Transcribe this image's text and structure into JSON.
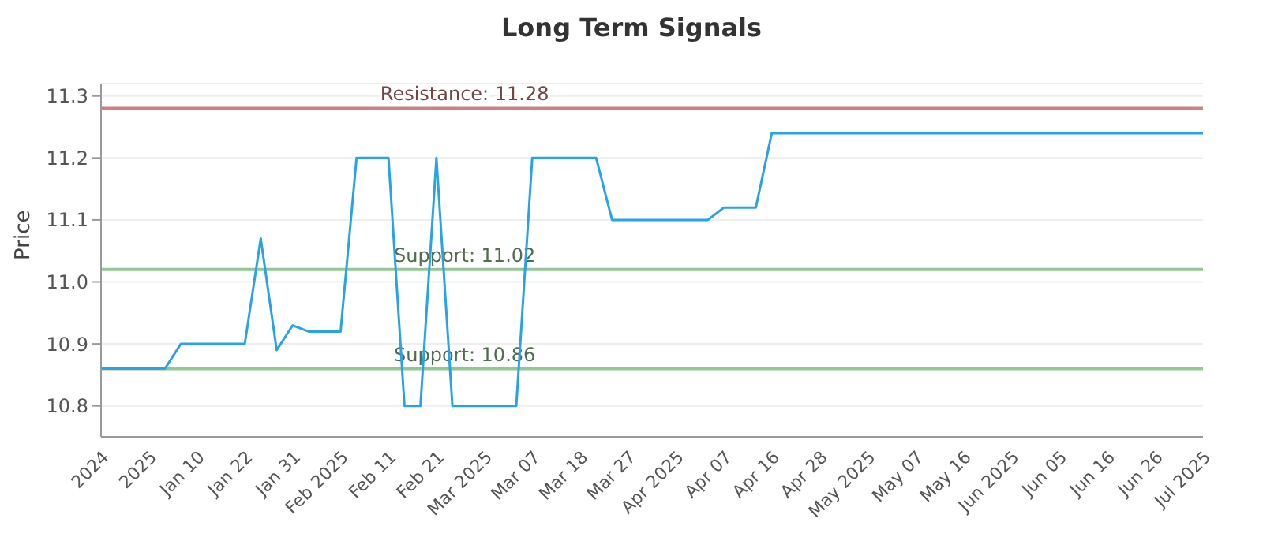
{
  "chart_data": {
    "type": "line",
    "title": "Long Term Signals",
    "ylabel": "Price",
    "categories": [
      "2024",
      null,
      null,
      "2025",
      null,
      null,
      "Jan 10",
      null,
      null,
      "Jan 22",
      null,
      null,
      "Jan 31",
      null,
      null,
      "Feb 2025",
      null,
      null,
      "Feb 11",
      null,
      null,
      "Feb 21",
      null,
      null,
      "Mar 2025",
      null,
      null,
      "Mar 07",
      null,
      null,
      "Mar 18",
      null,
      null,
      "Mar 27",
      null,
      null,
      "Apr 2025",
      null,
      null,
      "Apr 07",
      null,
      null,
      "Apr 16",
      null,
      null,
      "Apr 28",
      null,
      null,
      "May 2025",
      null,
      null,
      "May 07",
      null,
      null,
      "May 16",
      null,
      null,
      "Jun 2025",
      null,
      null,
      "Jun 05",
      null,
      null,
      "Jun 16",
      null,
      null,
      "Jun 26",
      null,
      null,
      "Jul 2025"
    ],
    "series": [
      {
        "color": "#29a3e8",
        "values": [
          10.86,
          10.86,
          10.86,
          10.86,
          10.86,
          10.9,
          10.9,
          10.9,
          10.9,
          10.9,
          11.07,
          10.89,
          10.93,
          10.92,
          10.92,
          10.92,
          11.2,
          11.2,
          11.2,
          10.8,
          10.8,
          11.2,
          10.8,
          10.8,
          10.8,
          10.8,
          10.8,
          11.2,
          11.2,
          11.2,
          11.2,
          11.2,
          11.1,
          11.1,
          11.1,
          11.1,
          11.1,
          11.1,
          11.1,
          11.12,
          11.12,
          11.12,
          11.24,
          11.24,
          11.24,
          11.24,
          11.24,
          11.24,
          11.24,
          11.24,
          11.24,
          11.24,
          11.24,
          11.24,
          11.24,
          11.24,
          11.24,
          11.24,
          11.24,
          11.24,
          11.24,
          11.24,
          11.24,
          11.24,
          11.24,
          11.24,
          11.24,
          11.24,
          11.24,
          11.24
        ]
      }
    ],
    "ylim": [
      10.75,
      11.32
    ],
    "yticks": [
      10.8,
      10.9,
      {
        "value": 11,
        "label": "11.0"
      },
      11.1,
      11.2,
      11.3
    ],
    "grid": "y",
    "marker": "none",
    "line_style": "solid",
    "legend": false,
    "ref_lines": [
      {
        "axis": "y",
        "value": 11.28,
        "label": "Resistance: 11.28",
        "color": "#d08080"
      },
      {
        "axis": "y",
        "value": 11.02,
        "label": "Support: 11.02",
        "color": "#90c890"
      },
      {
        "axis": "y",
        "value": 10.86,
        "label": "Support: 10.86",
        "color": "#90c890"
      }
    ]
  }
}
